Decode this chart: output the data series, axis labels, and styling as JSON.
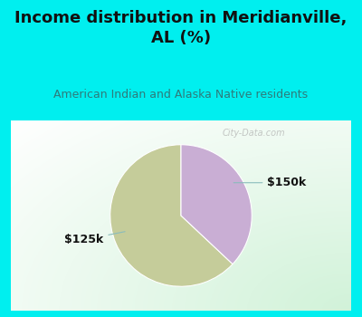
{
  "title": "Income distribution in Meridianville,\nAL (%)",
  "subtitle": "American Indian and Alaska Native residents",
  "slices": [
    63,
    37
  ],
  "labels": [
    "$125k",
    "$150k"
  ],
  "colors": [
    "#c5cc9a",
    "#c9aed4"
  ],
  "background_color": "#00efef",
  "title_color": "#111111",
  "subtitle_color": "#2e7b7b",
  "label_color": "#111111",
  "startangle": 90,
  "watermark": "City-Data.com",
  "watermark_color": "#aaaaaa"
}
